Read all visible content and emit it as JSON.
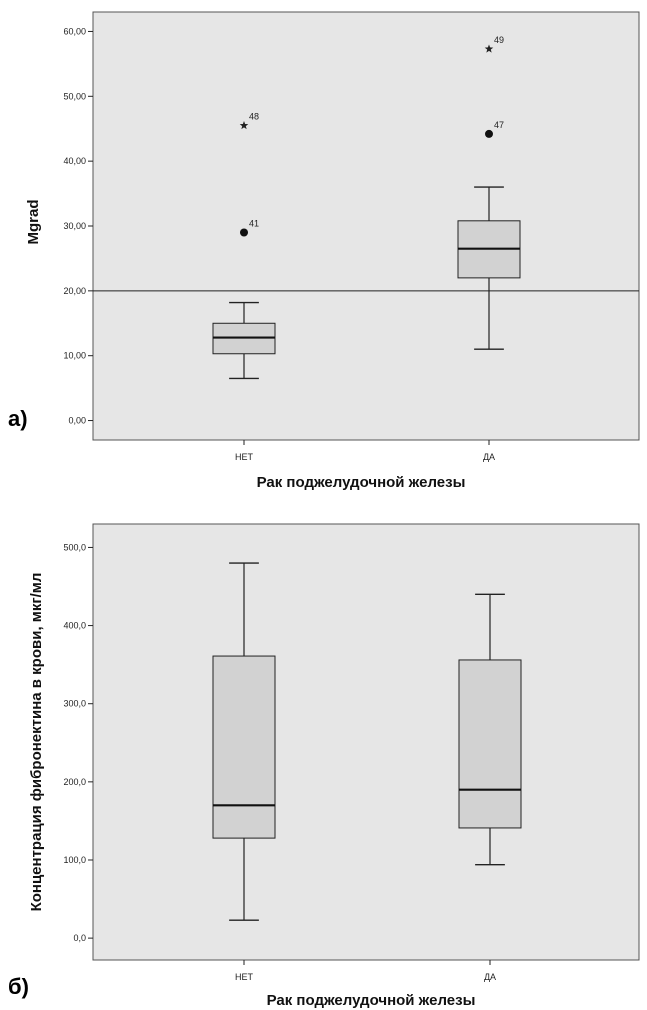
{
  "colors": {
    "plot_background": "#e6e6e6",
    "box_fill": "#d2d2d2",
    "line": "#222222"
  },
  "chart_data": [
    {
      "type": "boxplot",
      "panel_label": "а)",
      "xlabel": "Рак поджелудочной железы",
      "ylabel": "Mgrad",
      "categories": [
        "НЕТ",
        "ДА"
      ],
      "ylim": [
        -3,
        63
      ],
      "yticks": [
        0,
        10,
        20,
        30,
        40,
        50,
        60
      ],
      "ytick_labels": [
        "0,00",
        "10,00",
        "20,00",
        "30,00",
        "40,00",
        "50,00",
        "60,00"
      ],
      "reference_line": 20,
      "grid": false,
      "boxes": [
        {
          "category": "НЕТ",
          "whisker_low": 6.5,
          "q1": 10.3,
          "median": 12.8,
          "q3": 15.0,
          "whisker_high": 18.2
        },
        {
          "category": "ДА",
          "whisker_low": 11.0,
          "q1": 22.0,
          "median": 26.5,
          "q3": 30.8,
          "whisker_high": 36.0
        }
      ],
      "outliers": [
        {
          "category": "НЕТ",
          "value": 29.0,
          "symbol": "circle",
          "label": "41"
        },
        {
          "category": "НЕТ",
          "value": 45.5,
          "symbol": "star",
          "label": "48"
        },
        {
          "category": "ДА",
          "value": 44.2,
          "symbol": "circle",
          "label": "47"
        },
        {
          "category": "ДА",
          "value": 57.3,
          "symbol": "star",
          "label": "49"
        }
      ]
    },
    {
      "type": "boxplot",
      "panel_label": "б)",
      "xlabel": "Рак поджелудочной железы",
      "ylabel": "Концентрация фибронектина в крови, мкг/мл",
      "categories": [
        "НЕТ",
        "ДА"
      ],
      "ylim": [
        -28,
        530
      ],
      "yticks": [
        0,
        100,
        200,
        300,
        400,
        500
      ],
      "ytick_labels": [
        "0,0",
        "100,0",
        "200,0",
        "300,0",
        "400,0",
        "500,0"
      ],
      "grid": false,
      "boxes": [
        {
          "category": "НЕТ",
          "whisker_low": 23,
          "q1": 128,
          "median": 170,
          "q3": 361,
          "whisker_high": 480
        },
        {
          "category": "ДА",
          "whisker_low": 94,
          "q1": 141,
          "median": 190,
          "q3": 356,
          "whisker_high": 440
        }
      ],
      "outliers": []
    }
  ]
}
